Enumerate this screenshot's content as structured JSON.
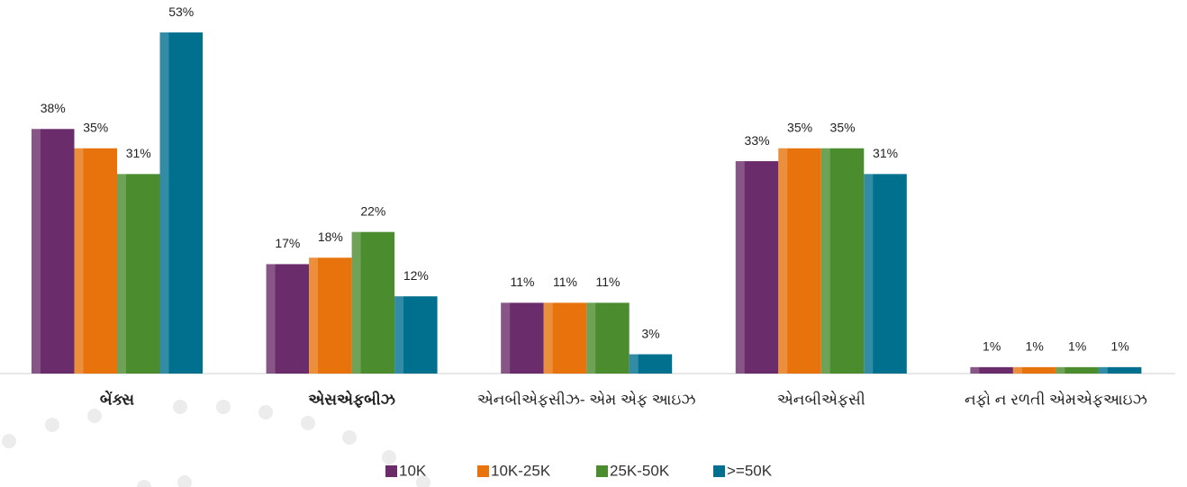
{
  "chart_data": {
    "type": "bar",
    "categories": [
      "બેંક્સ",
      "એસએફબીઝ",
      "એનબીએફસીઝ- એમ એફ આઇઝ",
      "એનબીએફસી",
      "નફો ન રળતી  એમએફઆઇઝ"
    ],
    "series": [
      {
        "name": "10K",
        "color": "#6a2c6a",
        "values": [
          38,
          17,
          11,
          33,
          1
        ],
        "value_labels": [
          "38%",
          "17%",
          "11%",
          "33%",
          "1%"
        ]
      },
      {
        "name": "10K-25K",
        "color": "#e8730c",
        "values": [
          35,
          18,
          11,
          35,
          1
        ],
        "value_labels": [
          "35%",
          "18%",
          "11%",
          "35%",
          "1%"
        ]
      },
      {
        "name": "25K-50K",
        "color": "#4a8c2e",
        "values": [
          31,
          22,
          11,
          35,
          1
        ],
        "value_labels": [
          "31%",
          "22%",
          "11%",
          "35%",
          "1%"
        ]
      },
      {
        "name": ">=50K",
        "color": "#00708f",
        "values": [
          53,
          12,
          3,
          31,
          1
        ],
        "value_labels": [
          "53%",
          "12%",
          "3%",
          "31%",
          "1%"
        ]
      }
    ]
  }
}
